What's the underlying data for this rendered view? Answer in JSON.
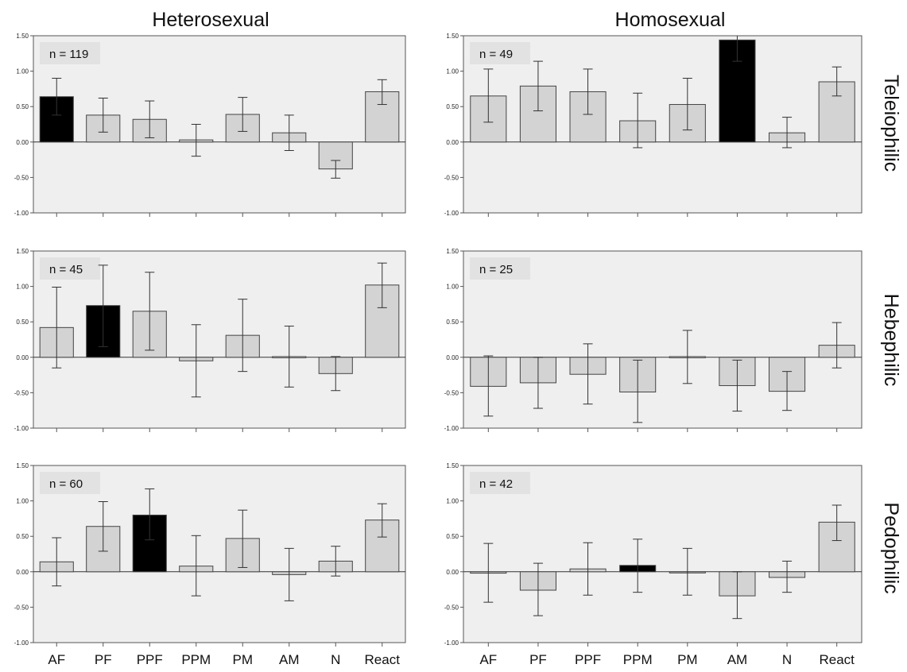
{
  "figure": {
    "column_titles": [
      "Heterosexual",
      "Homosexual"
    ],
    "row_labels": [
      "Teleiophilic",
      "Hebephilic",
      "Pedophilic"
    ]
  },
  "chart_data": [
    {
      "type": "bar",
      "column": "Heterosexual",
      "row": "Teleiophilic",
      "n_label": "n = 119",
      "categories": [
        "AF",
        "PF",
        "PPF",
        "PPM",
        "PM",
        "AM",
        "N",
        "React"
      ],
      "values": [
        0.64,
        0.38,
        0.32,
        0.03,
        0.39,
        0.13,
        -0.38,
        0.71
      ],
      "error": [
        [
          0.38,
          0.9
        ],
        [
          0.14,
          0.62
        ],
        [
          0.06,
          0.58
        ],
        [
          -0.2,
          0.25
        ],
        [
          0.15,
          0.63
        ],
        [
          -0.12,
          0.38
        ],
        [
          -0.51,
          -0.26
        ],
        [
          0.53,
          0.88
        ]
      ],
      "highlight_index": 0,
      "ylim": [
        -1.0,
        1.5
      ],
      "yticks": [
        "1.50",
        "1.00",
        "0.50",
        "0.00",
        "-0.50",
        "-1.00"
      ],
      "show_category_labels": false
    },
    {
      "type": "bar",
      "column": "Homosexual",
      "row": "Teleiophilic",
      "n_label": "n = 49",
      "categories": [
        "AF",
        "PF",
        "PPF",
        "PPM",
        "PM",
        "AM",
        "N",
        "React"
      ],
      "values": [
        0.65,
        0.79,
        0.71,
        0.3,
        0.53,
        1.44,
        0.13,
        0.85
      ],
      "error": [
        [
          0.28,
          1.03
        ],
        [
          0.44,
          1.14
        ],
        [
          0.39,
          1.03
        ],
        [
          -0.08,
          0.69
        ],
        [
          0.17,
          0.9
        ],
        [
          1.14,
          1.78
        ],
        [
          -0.08,
          0.35
        ],
        [
          0.65,
          1.06
        ]
      ],
      "highlight_index": 5,
      "ylim": [
        -1.0,
        1.5
      ],
      "yticks": [
        "1.50",
        "1.00",
        "0.50",
        "0.00",
        "-0.50",
        "-1.00"
      ],
      "show_category_labels": false
    },
    {
      "type": "bar",
      "column": "Heterosexual",
      "row": "Hebephilic",
      "n_label": "n = 45",
      "categories": [
        "AF",
        "PF",
        "PPF",
        "PPM",
        "PM",
        "AM",
        "N",
        "React"
      ],
      "values": [
        0.42,
        0.73,
        0.65,
        -0.05,
        0.31,
        0.01,
        -0.23,
        1.02
      ],
      "error": [
        [
          -0.15,
          0.99
        ],
        [
          0.15,
          1.3
        ],
        [
          0.1,
          1.2
        ],
        [
          -0.56,
          0.46
        ],
        [
          -0.2,
          0.82
        ],
        [
          -0.42,
          0.44
        ],
        [
          -0.47,
          0.01
        ],
        [
          0.7,
          1.33
        ]
      ],
      "highlight_index": 1,
      "ylim": [
        -1.0,
        1.5
      ],
      "yticks": [
        "1.50",
        "1.00",
        "0.50",
        "0.00",
        "-0.50",
        "-1.00"
      ],
      "show_category_labels": false
    },
    {
      "type": "bar",
      "column": "Homosexual",
      "row": "Hebephilic",
      "n_label": "n = 25",
      "categories": [
        "AF",
        "PF",
        "PPF",
        "PPM",
        "PM",
        "AM",
        "N",
        "React"
      ],
      "values": [
        -0.41,
        -0.36,
        -0.24,
        -0.49,
        0.01,
        -0.4,
        -0.48,
        0.17
      ],
      "error": [
        [
          -0.83,
          0.02
        ],
        [
          -0.72,
          0.0
        ],
        [
          -0.66,
          0.19
        ],
        [
          -0.92,
          -0.04
        ],
        [
          -0.37,
          0.38
        ],
        [
          -0.76,
          -0.04
        ],
        [
          -0.75,
          -0.2
        ],
        [
          -0.15,
          0.49
        ]
      ],
      "highlight_index": null,
      "ylim": [
        -1.0,
        1.5
      ],
      "yticks": [
        "1.50",
        "1.00",
        "0.50",
        "0.00",
        "-0.50",
        "-1.00"
      ],
      "show_category_labels": false
    },
    {
      "type": "bar",
      "column": "Heterosexual",
      "row": "Pedophilic",
      "n_label": "n = 60",
      "categories": [
        "AF",
        "PF",
        "PPF",
        "PPM",
        "PM",
        "AM",
        "N",
        "React"
      ],
      "values": [
        0.14,
        0.64,
        0.8,
        0.08,
        0.47,
        -0.04,
        0.15,
        0.73
      ],
      "error": [
        [
          -0.2,
          0.48
        ],
        [
          0.29,
          0.99
        ],
        [
          0.45,
          1.17
        ],
        [
          -0.34,
          0.51
        ],
        [
          0.06,
          0.87
        ],
        [
          -0.41,
          0.33
        ],
        [
          -0.06,
          0.36
        ],
        [
          0.49,
          0.96
        ]
      ],
      "highlight_index": 2,
      "ylim": [
        -1.0,
        1.5
      ],
      "yticks": [
        "1.50",
        "1.00",
        "0.50",
        "0.00",
        "-0.50",
        "-1.00"
      ],
      "show_category_labels": true
    },
    {
      "type": "bar",
      "column": "Homosexual",
      "row": "Pedophilic",
      "n_label": "n = 42",
      "categories": [
        "AF",
        "PF",
        "PPF",
        "PPM",
        "PM",
        "AM",
        "N",
        "React"
      ],
      "values": [
        -0.02,
        -0.26,
        0.04,
        0.09,
        0.0,
        -0.34,
        -0.08,
        0.7
      ],
      "error": [
        [
          -0.43,
          0.4
        ],
        [
          -0.62,
          0.12
        ],
        [
          -0.33,
          0.41
        ],
        [
          -0.29,
          0.46
        ],
        [
          -0.33,
          0.33
        ],
        [
          -0.66,
          0.0
        ],
        [
          -0.29,
          0.15
        ],
        [
          0.44,
          0.94
        ]
      ],
      "highlight_index": 3,
      "ylim": [
        -1.0,
        1.5
      ],
      "yticks": [
        "1.50",
        "1.00",
        "0.50",
        "0.00",
        "-0.50",
        "-1.00"
      ],
      "show_category_labels": true
    }
  ]
}
